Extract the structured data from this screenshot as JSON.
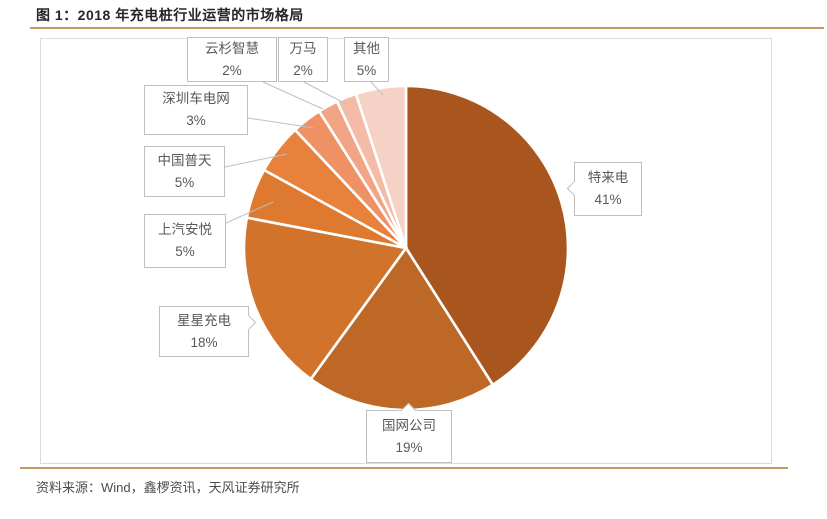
{
  "figure": {
    "title": "图 1：2018 年充电桩行业运营的市场格局",
    "source": "资料来源：Wind，鑫椤资讯，天风证券研究所"
  },
  "colors": {
    "accent_rule": "#C19A5F",
    "frame_border": "#DBDBDB",
    "label_border": "#BFBFBF",
    "label_text": "#595959",
    "leader_line": "#BFBFBF",
    "slice_gap": "#FFFFFF"
  },
  "chart_data": {
    "type": "pie",
    "title": "2018 年充电桩行业运营的市场格局",
    "start_angle_deg": 0,
    "direction": "clockwise",
    "legend_position": "none",
    "slices": [
      {
        "label": "特来电",
        "value": 41,
        "pct_label": "41%",
        "color": "#A8551E"
      },
      {
        "label": "国网公司",
        "value": 19,
        "pct_label": "19%",
        "color": "#BD6826"
      },
      {
        "label": "星星充电",
        "value": 18,
        "pct_label": "18%",
        "color": "#D1732B"
      },
      {
        "label": "上汽安悦",
        "value": 5,
        "pct_label": "5%",
        "color": "#DE7A2F"
      },
      {
        "label": "中国普天",
        "value": 5,
        "pct_label": "5%",
        "color": "#E8813C"
      },
      {
        "label": "深圳车电网",
        "value": 3,
        "pct_label": "3%",
        "color": "#EE9266"
      },
      {
        "label": "云杉智慧",
        "value": 2,
        "pct_label": "2%",
        "color": "#F1A585"
      },
      {
        "label": "万马",
        "value": 2,
        "pct_label": "2%",
        "color": "#F4BCA6"
      },
      {
        "label": "其他",
        "value": 5,
        "pct_label": "5%",
        "color": "#F6D1C5"
      }
    ]
  }
}
